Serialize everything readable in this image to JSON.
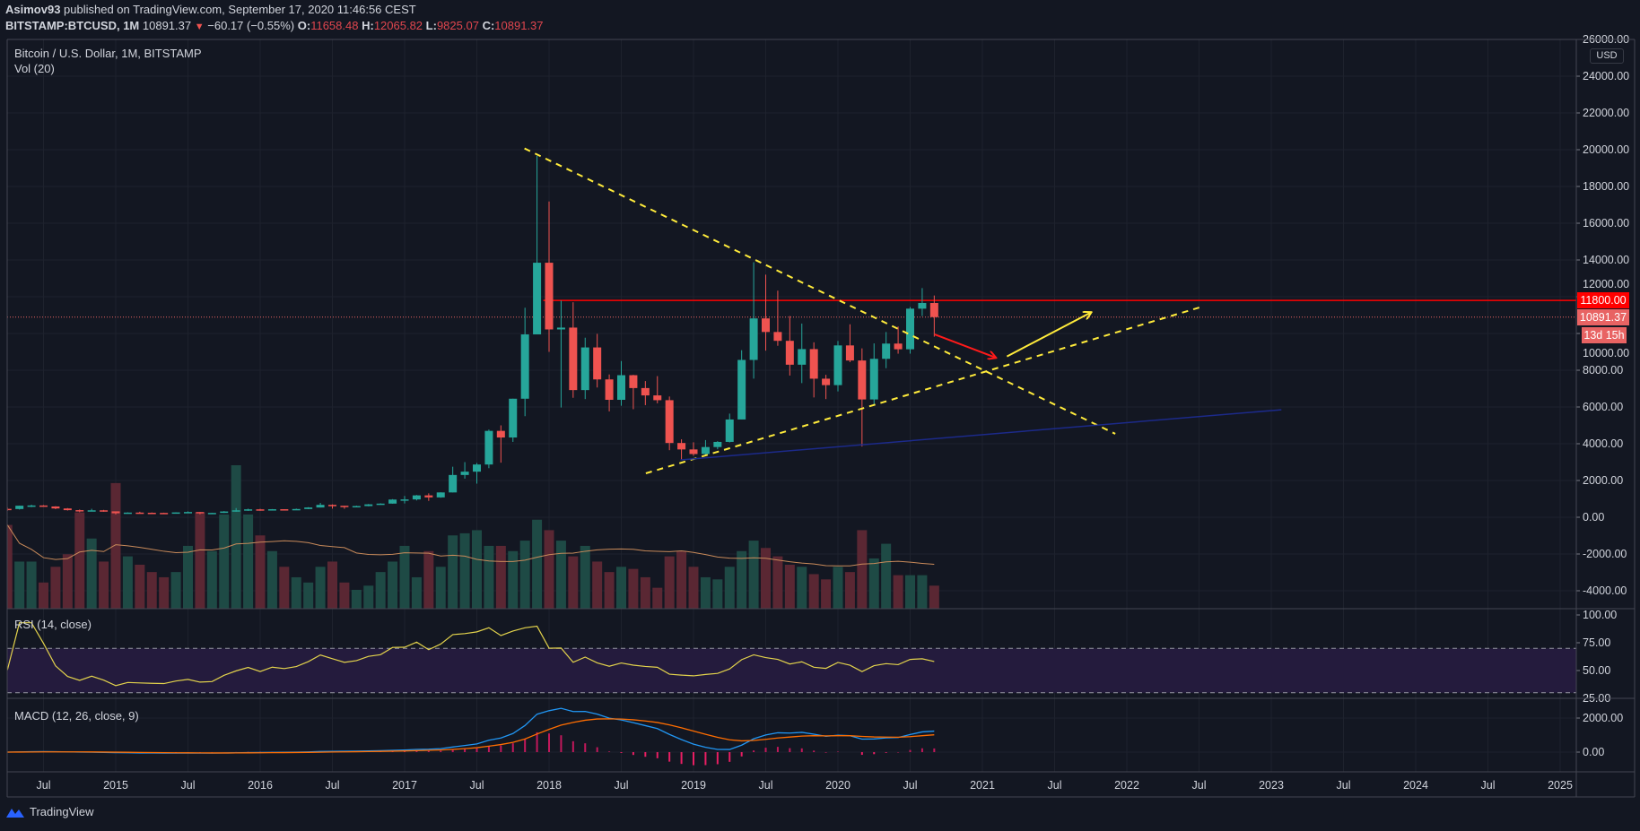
{
  "header": {
    "author": "Asimov93",
    "published": " published on TradingView.com, September 17, 2020 11:46:56 CEST",
    "symbol": "BITSTAMP:BTCUSD, 1M",
    "last": "10891.37",
    "change": "−60.17 (−0.55%)",
    "o_label": "O:",
    "o": "11658.48",
    "h_label": "H:",
    "h": "12065.82",
    "l_label": "L:",
    "l": "9825.07",
    "c_label": "C:",
    "c": "10891.37"
  },
  "legend": {
    "main": "Bitcoin / U.S. Dollar, 1M, BITSTAMP",
    "vol": "Vol (20)",
    "rsi": "RSI (14, close)",
    "macd": "MACD (12, 26, close, 9)"
  },
  "price_axis": {
    "currency": "USD",
    "ticks": [
      "26000.00",
      "24000.00",
      "22000.00",
      "20000.00",
      "18000.00",
      "16000.00",
      "14000.00",
      "12000.00",
      "10000.00",
      "8000.00",
      "6000.00",
      "4000.00",
      "2000.00",
      "0.00",
      "-2000.00",
      "-4000.00"
    ],
    "tick_values": [
      26000,
      24000,
      22000,
      20000,
      18000,
      16000,
      14000,
      12000,
      10000,
      8000,
      6000,
      4000,
      2000,
      0,
      -2000,
      -4000
    ],
    "rsi_ticks": [
      "100.00",
      "75.00",
      "50.00",
      "25.00"
    ],
    "rsi_values": [
      100,
      75,
      50,
      25
    ],
    "macd_ticks": [
      "2000.00",
      "0.00"
    ],
    "macd_values": [
      2000,
      0
    ],
    "tags": {
      "level": "11800.00",
      "last": "10891.37",
      "countdown": "13d 15h"
    }
  },
  "time_axis": {
    "labels": [
      "Jul",
      "2015",
      "Jul",
      "2016",
      "Jul",
      "2017",
      "Jul",
      "2018",
      "Jul",
      "2019",
      "Jul",
      "2020",
      "Jul",
      "2021",
      "Jul",
      "2022",
      "Jul",
      "2023",
      "Jul",
      "2024",
      "Jul",
      "2025"
    ],
    "start": 2014.5,
    "step": 0.5
  },
  "branding": "TradingView",
  "colors": {
    "up": "#26a69a",
    "down": "#ef5350",
    "bg": "#131722",
    "level": "#ff0000",
    "trend": "#ffeb3b",
    "blue": "#1a237e"
  },
  "chart_data": {
    "type": "candlestick",
    "title": "Bitcoin / U.S. Dollar, 1M, BITSTAMP",
    "start_year": 2014,
    "start_month": 4,
    "ohlcv": [
      [
        457,
        540,
        340,
        447,
        80
      ],
      [
        447,
        630,
        420,
        627,
        45
      ],
      [
        627,
        680,
        550,
        640,
        45
      ],
      [
        640,
        660,
        570,
        586,
        25
      ],
      [
        586,
        600,
        440,
        478,
        40
      ],
      [
        478,
        500,
        365,
        386,
        52
      ],
      [
        386,
        420,
        275,
        338,
        92
      ],
      [
        338,
        460,
        320,
        377,
        67
      ],
      [
        377,
        400,
        300,
        320,
        45
      ],
      [
        320,
        320,
        152,
        217,
        120
      ],
      [
        217,
        265,
        210,
        254,
        50
      ],
      [
        254,
        300,
        235,
        244,
        42
      ],
      [
        244,
        260,
        214,
        236,
        35
      ],
      [
        236,
        248,
        225,
        230,
        30
      ],
      [
        230,
        268,
        220,
        263,
        35
      ],
      [
        263,
        318,
        250,
        284,
        60
      ],
      [
        284,
        286,
        162,
        230,
        92
      ],
      [
        230,
        245,
        225,
        236,
        55
      ],
      [
        236,
        334,
        235,
        314,
        90
      ],
      [
        314,
        500,
        300,
        377,
        137
      ],
      [
        377,
        465,
        345,
        430,
        90
      ],
      [
        430,
        460,
        355,
        369,
        70
      ],
      [
        369,
        445,
        365,
        437,
        55
      ],
      [
        437,
        440,
        390,
        416,
        40
      ],
      [
        416,
        470,
        410,
        448,
        30
      ],
      [
        448,
        550,
        440,
        531,
        25
      ],
      [
        531,
        780,
        530,
        674,
        40
      ],
      [
        674,
        700,
        470,
        624,
        45
      ],
      [
        624,
        625,
        460,
        574,
        25
      ],
      [
        574,
        630,
        570,
        608,
        18
      ],
      [
        608,
        720,
        595,
        701,
        22
      ],
      [
        701,
        760,
        680,
        742,
        35
      ],
      [
        742,
        985,
        740,
        963,
        45
      ],
      [
        963,
        1160,
        750,
        970,
        60
      ],
      [
        970,
        1210,
        915,
        1190,
        30
      ],
      [
        1190,
        1300,
        890,
        1080,
        55
      ],
      [
        1080,
        1360,
        1060,
        1350,
        40
      ],
      [
        1350,
        2750,
        1350,
        2300,
        70
      ],
      [
        2300,
        3000,
        2100,
        2480,
        72
      ],
      [
        2480,
        2950,
        1830,
        2870,
        75
      ],
      [
        2870,
        4770,
        2670,
        4700,
        60
      ],
      [
        4700,
        5000,
        2970,
        4340,
        60
      ],
      [
        4340,
        6450,
        4100,
        6450,
        55
      ],
      [
        6450,
        11400,
        5500,
        9950,
        65
      ],
      [
        9950,
        19666,
        9950,
        13850,
        85
      ],
      [
        13850,
        17180,
        9000,
        10220,
        75
      ],
      [
        10220,
        11790,
        5970,
        10320,
        65
      ],
      [
        10320,
        11700,
        6500,
        6920,
        50
      ],
      [
        6920,
        9770,
        6430,
        9240,
        60
      ],
      [
        9240,
        9980,
        7060,
        7500,
        45
      ],
      [
        7500,
        7770,
        5760,
        6390,
        35
      ],
      [
        6390,
        8500,
        6070,
        7730,
        40
      ],
      [
        7730,
        7750,
        5880,
        7030,
        38
      ],
      [
        7030,
        7410,
        6100,
        6630,
        30
      ],
      [
        6630,
        7680,
        6200,
        6370,
        20
      ],
      [
        6370,
        6570,
        3650,
        4040,
        50
      ],
      [
        4040,
        4240,
        3120,
        3690,
        55
      ],
      [
        3690,
        4080,
        3350,
        3440,
        40
      ],
      [
        3440,
        4200,
        3370,
        3820,
        30
      ],
      [
        3820,
        4140,
        3700,
        4100,
        28
      ],
      [
        4100,
        5640,
        4070,
        5320,
        40
      ],
      [
        5320,
        9090,
        5330,
        8560,
        55
      ],
      [
        8560,
        13880,
        7540,
        10820,
        65
      ],
      [
        10820,
        13200,
        9070,
        10080,
        58
      ],
      [
        10080,
        12330,
        9330,
        9600,
        50
      ],
      [
        9600,
        10950,
        7710,
        8300,
        42
      ],
      [
        8300,
        10540,
        7300,
        9150,
        40
      ],
      [
        9150,
        9520,
        6520,
        7540,
        33
      ],
      [
        7540,
        7750,
        6430,
        7190,
        28
      ],
      [
        7190,
        9590,
        6850,
        9350,
        40
      ],
      [
        9350,
        10500,
        8440,
        8530,
        35
      ],
      [
        8530,
        9190,
        3850,
        6410,
        75
      ],
      [
        6410,
        9460,
        6150,
        8620,
        48
      ],
      [
        8620,
        10080,
        8110,
        9450,
        62
      ],
      [
        9450,
        10380,
        8900,
        9140,
        32
      ],
      [
        9140,
        11440,
        8900,
        11350,
        32
      ],
      [
        11350,
        12470,
        10950,
        11660,
        32
      ],
      [
        11658.48,
        12065.82,
        9825.07,
        10891.37,
        22
      ]
    ],
    "horizontal_level": {
      "price": 11800,
      "from": 2017.96
    },
    "last_price": 10891.37,
    "drawings": [
      {
        "kind": "dashed",
        "color": "#ffeb3b",
        "from": [
          2017.83,
          20070
        ],
        "to": [
          2021.92,
          4540
        ]
      },
      {
        "kind": "dashed",
        "color": "#ffeb3b",
        "from": [
          2018.67,
          2390
        ],
        "to": [
          2022.53,
          11480
        ]
      },
      {
        "kind": "arrow",
        "color": "#ff1a1a",
        "from": [
          2020.67,
          9950
        ],
        "to": [
          2021.09,
          8690
        ]
      },
      {
        "kind": "arrow",
        "color": "#ffeb3b",
        "from": [
          2021.17,
          8750
        ],
        "to": [
          2021.75,
          11140
        ]
      },
      {
        "kind": "line",
        "color": "#1c2a8a",
        "from": [
          2018.91,
          3120
        ],
        "to": [
          2023.07,
          5850
        ]
      }
    ],
    "rsi_band": [
      30,
      70
    ],
    "ylim": [
      -4000,
      26000
    ],
    "xlim": [
      2014.2,
      2025.3
    ]
  }
}
